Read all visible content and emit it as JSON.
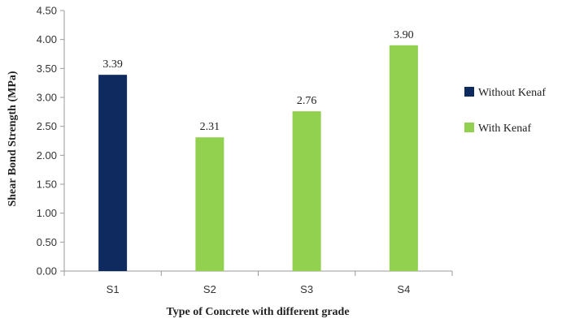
{
  "chart_data": {
    "type": "bar",
    "title": "",
    "xlabel": "Type of Concrete with different grade",
    "ylabel": "Shear Bond Strength (MPa)",
    "categories": [
      "S1",
      "S2",
      "S3",
      "S4"
    ],
    "series": [
      {
        "name": "Without Kenaf",
        "color": "#0f2a5e",
        "values": [
          3.39,
          null,
          null,
          null
        ]
      },
      {
        "name": "With Kenaf",
        "color": "#92d050",
        "values": [
          null,
          2.31,
          2.76,
          3.9
        ]
      }
    ],
    "data_labels": [
      "3.39",
      "2.31",
      "2.76",
      "3.90"
    ],
    "ylim": [
      0,
      4.5
    ],
    "yticks": [
      "0.00",
      "0.50",
      "1.00",
      "1.50",
      "2.00",
      "2.50",
      "3.00",
      "3.50",
      "4.00",
      "4.50"
    ],
    "grid": false,
    "legend_position": "right"
  }
}
